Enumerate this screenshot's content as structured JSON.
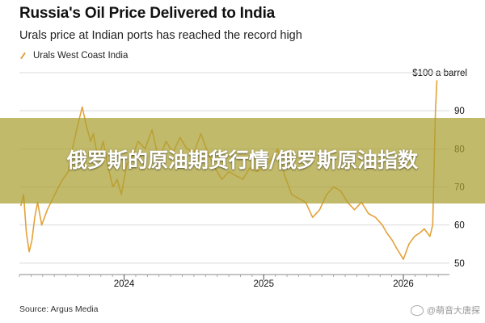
{
  "chart_data": {
    "type": "line",
    "title": "Russia's Oil Price Delivered to India",
    "subtitle": "Urals price at Indian ports has reached the record high",
    "xlabel": "",
    "ylabel": "",
    "unit_label": "$100 a barrel",
    "ylim": [
      47,
      100
    ],
    "xlim": [
      2023.25,
      2026.33
    ],
    "x_ticks": [
      {
        "value": 2024,
        "label": "2024"
      },
      {
        "value": 2025,
        "label": "2025"
      },
      {
        "value": 2026,
        "label": "2026"
      }
    ],
    "y_ticks": [
      {
        "value": 100,
        "label": "$100 a barrel"
      },
      {
        "value": 90,
        "label": "90"
      },
      {
        "value": 80,
        "label": "80"
      },
      {
        "value": 70,
        "label": "70"
      },
      {
        "value": 60,
        "label": "60"
      },
      {
        "value": 50,
        "label": "50"
      }
    ],
    "grid": true,
    "legend_position": "top-left",
    "series": [
      {
        "name": "Urals West Coast India",
        "color": "#e3a23a",
        "x": [
          2023.26,
          2023.28,
          2023.3,
          2023.32,
          2023.34,
          2023.36,
          2023.38,
          2023.41,
          2023.45,
          2023.49,
          2023.53,
          2023.56,
          2023.6,
          2023.63,
          2023.66,
          2023.68,
          2023.7,
          2023.73,
          2023.76,
          2023.78,
          2023.8,
          2023.82,
          2023.85,
          2023.88,
          2023.92,
          2023.95,
          2023.98,
          2024.02,
          2024.06,
          2024.1,
          2024.15,
          2024.2,
          2024.25,
          2024.3,
          2024.35,
          2024.4,
          2024.45,
          2024.5,
          2024.55,
          2024.6,
          2024.65,
          2024.7,
          2024.75,
          2024.8,
          2024.85,
          2024.9,
          2024.95,
          2025.0,
          2025.05,
          2025.1,
          2025.15,
          2025.2,
          2025.25,
          2025.3,
          2025.35,
          2025.4,
          2025.45,
          2025.5,
          2025.55,
          2025.6,
          2025.65,
          2025.7,
          2025.75,
          2025.8,
          2025.85,
          2025.88,
          2025.92,
          2025.95,
          2026.0,
          2026.04,
          2026.08,
          2026.12,
          2026.15,
          2026.17,
          2026.19,
          2026.21,
          2026.22,
          2026.23,
          2026.24
        ],
        "y": [
          65,
          68,
          58,
          53,
          56,
          62,
          66,
          60,
          64,
          67,
          70,
          72,
          74,
          80,
          85,
          88,
          91,
          86,
          82,
          84,
          80,
          78,
          82,
          76,
          70,
          72,
          68,
          76,
          78,
          82,
          80,
          85,
          77,
          82,
          79,
          83,
          80,
          79,
          84,
          79,
          75,
          72,
          74,
          73,
          72,
          75,
          74,
          75,
          77,
          80,
          73,
          68,
          67,
          66,
          62,
          64,
          68,
          70,
          69,
          66,
          64,
          66,
          63,
          62,
          60,
          58,
          56,
          54,
          51,
          55,
          57,
          58,
          59,
          58,
          57,
          60,
          75,
          90,
          98
        ]
      }
    ]
  },
  "source": "Source: Argus Media",
  "watermark": "@萌音大唐探",
  "overlay_title": "俄罗斯的原油期货行情/俄罗斯原油指数"
}
